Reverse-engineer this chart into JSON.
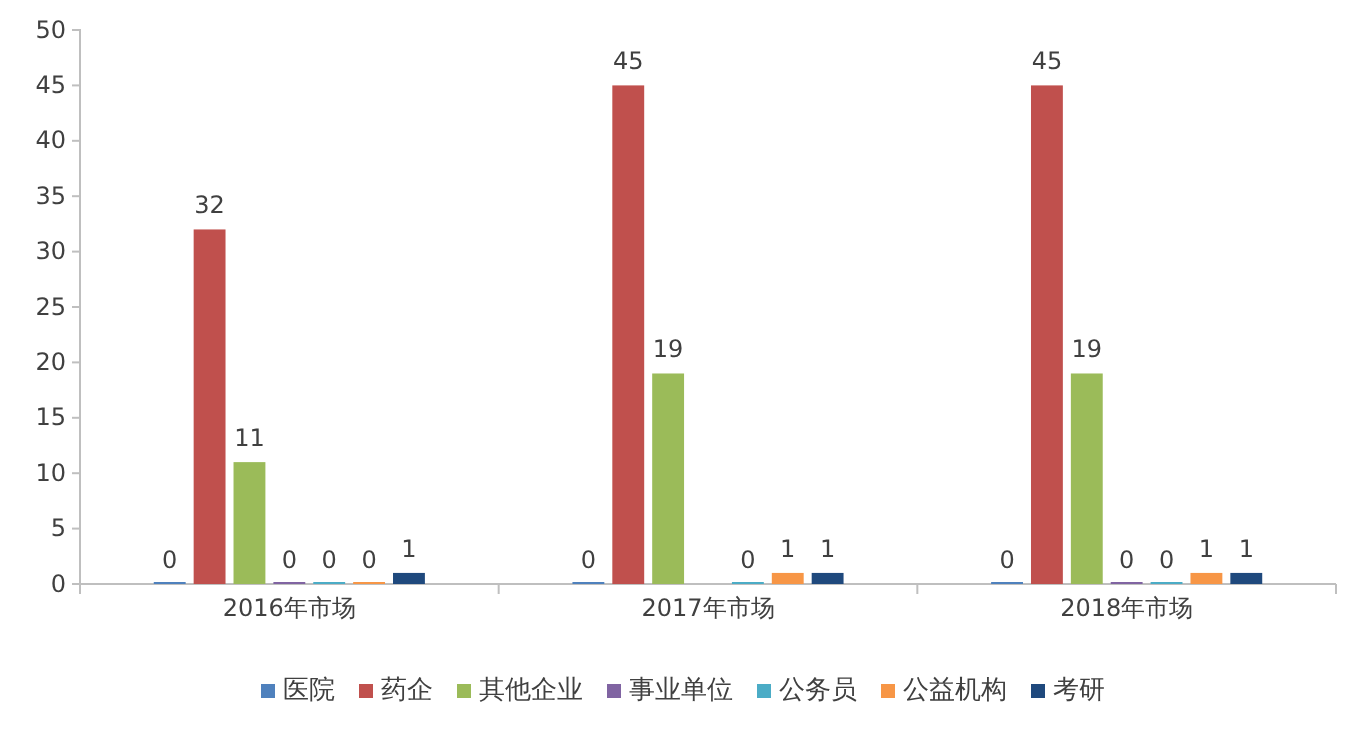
{
  "chart_data": {
    "type": "bar",
    "categories": [
      "2016年市场",
      "2017年市场",
      "2018年市场"
    ],
    "series": [
      {
        "name": "医院",
        "color": "#4f81bd",
        "values": [
          0,
          0,
          0
        ]
      },
      {
        "name": "药企",
        "color": "#c0504d",
        "values": [
          32,
          45,
          45
        ]
      },
      {
        "name": "其他企业",
        "color": "#9bbb59",
        "values": [
          11,
          19,
          19
        ]
      },
      {
        "name": "事业单位",
        "color": "#8064a2",
        "values": [
          0,
          null,
          0
        ]
      },
      {
        "name": "公务员",
        "color": "#4bacc6",
        "values": [
          0,
          0,
          0
        ]
      },
      {
        "name": "公益机构",
        "color": "#f79646",
        "values": [
          0,
          1,
          1
        ]
      },
      {
        "name": "考研",
        "color": "#1f497d",
        "values": [
          1,
          1,
          1
        ]
      }
    ],
    "ylim": [
      0,
      50
    ],
    "yticks": [
      0,
      5,
      10,
      15,
      20,
      25,
      30,
      35,
      40,
      45,
      50
    ],
    "grid": false,
    "legend": "bottom",
    "data_labels": true
  }
}
